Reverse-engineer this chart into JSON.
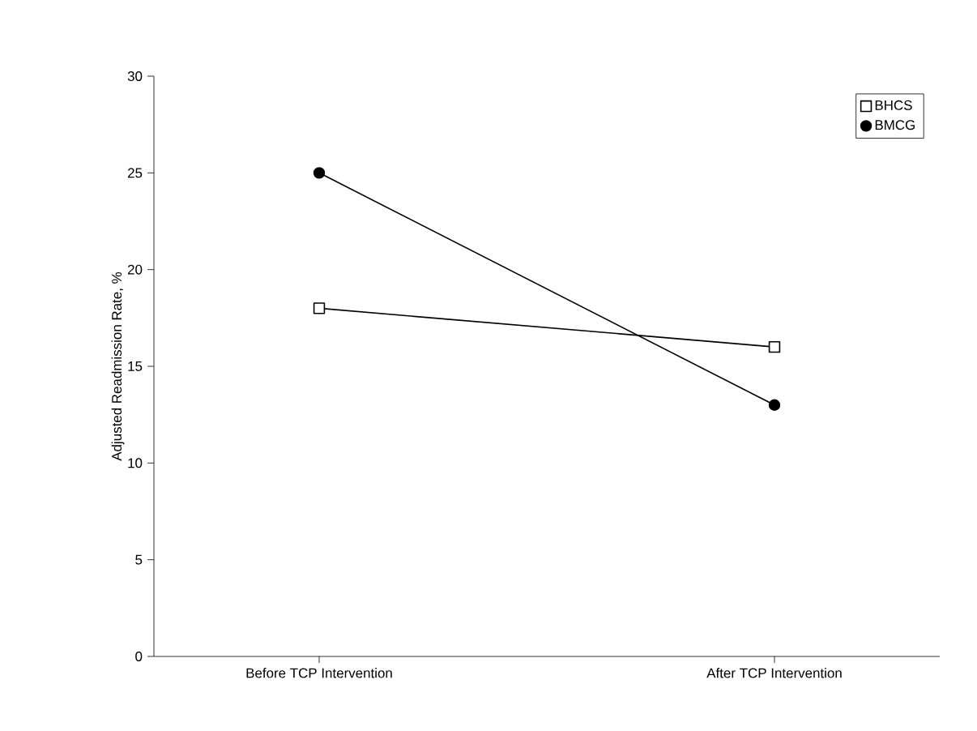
{
  "chart_data": {
    "type": "line",
    "ylabel": "Adjusted Readmission Rate, %",
    "categories": [
      "Before TCP Intervention",
      "After TCP Intervention"
    ],
    "series": [
      {
        "name": "BHCS",
        "color": "#000000",
        "marker": "square",
        "values": [
          18,
          16
        ]
      },
      {
        "name": "BMCG",
        "color": "#000000",
        "marker": "circle",
        "values": [
          25,
          13
        ]
      }
    ],
    "ylim": [
      0,
      30
    ],
    "yticks": [
      0,
      5,
      10,
      15,
      20,
      25,
      30
    ],
    "grid": false,
    "legend": "top right",
    "line_style": "solid"
  }
}
